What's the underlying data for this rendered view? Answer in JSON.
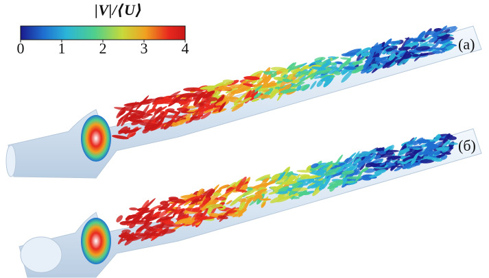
{
  "colorbar": {
    "title": "|V|/⟨U⟩",
    "ticks": [
      "0",
      "1",
      "2",
      "3",
      "4"
    ],
    "colors": [
      "#1a1a8c",
      "#1f6fd1",
      "#2bb5d8",
      "#4fcf8c",
      "#c8d93a",
      "#f0a020",
      "#e8281e",
      "#c81818"
    ]
  },
  "panels": {
    "top_label": "(а)",
    "bottom_label": "(б)"
  },
  "pipe_color": "#dfe9f4",
  "icons": [
    "pipe-a",
    "pipe-b",
    "vortex-field-a",
    "vortex-field-b"
  ]
}
